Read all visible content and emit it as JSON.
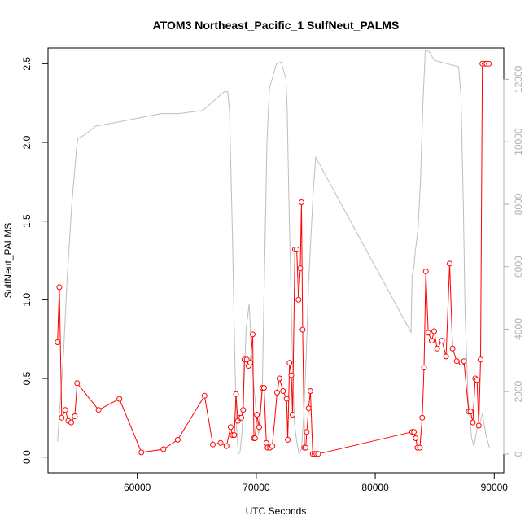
{
  "chart_data": {
    "type": "line",
    "title": "ATOM3 Northeast_Pacific_1 SulfNeut_PALMS",
    "xlabel": "UTC Seconds",
    "ylabel": "SulfNeut_PALMS",
    "xlim": [
      52500,
      90800
    ],
    "ylim": [
      -0.1,
      2.6
    ],
    "y2lim": [
      -600,
      13000
    ],
    "x_ticks": [
      60000,
      70000,
      80000,
      90000
    ],
    "y_ticks": [
      0.0,
      0.5,
      1.0,
      1.5,
      2.0,
      2.5
    ],
    "y2_ticks": [
      0,
      2000,
      4000,
      6000,
      8000,
      10000,
      12000
    ],
    "grid": false,
    "colors": {
      "primary": "#ff0000",
      "secondary": "#bebebe"
    },
    "series": [
      {
        "axis": "left",
        "style": "line+markers",
        "x": [
          53300,
          53450,
          53650,
          53950,
          54200,
          54450,
          54750,
          54950,
          56750,
          58500,
          60350,
          62200,
          63400,
          65650,
          66350,
          67000,
          67500,
          67850,
          68000,
          68150,
          68300,
          68450,
          68600,
          68750,
          68900,
          69000,
          69200,
          69350,
          69500,
          69700,
          69800,
          69900,
          70050,
          70250,
          70500,
          70650,
          70850,
          70950,
          71150,
          71350,
          71750,
          71950,
          72250,
          72550,
          72650,
          72800,
          72950,
          73050,
          73250,
          73400,
          73550,
          73700,
          73800,
          73900,
          74050,
          74150,
          74250,
          74400,
          74550,
          74750,
          74900,
          75050,
          75200,
          83100,
          83250,
          83400,
          83550,
          83750,
          83950,
          84100,
          84250,
          84450,
          84750,
          84950,
          85200,
          85600,
          85950,
          86250,
          86500,
          86850,
          87250,
          87450,
          87850,
          88000,
          88200,
          88400,
          88550,
          88700,
          88850,
          89000,
          89200,
          89350,
          89550
        ],
        "values": [
          0.73,
          1.08,
          0.25,
          0.3,
          0.23,
          0.22,
          0.26,
          0.47,
          0.3,
          0.37,
          0.03,
          0.05,
          0.11,
          0.39,
          0.08,
          0.09,
          0.07,
          0.19,
          0.14,
          0.14,
          0.4,
          0.23,
          0.25,
          0.25,
          0.3,
          0.62,
          0.62,
          0.58,
          0.6,
          0.78,
          0.12,
          0.12,
          0.27,
          0.19,
          0.44,
          0.44,
          0.09,
          0.06,
          0.06,
          0.07,
          0.41,
          0.5,
          0.42,
          0.37,
          0.11,
          0.6,
          0.52,
          0.27,
          1.32,
          1.32,
          1.0,
          1.2,
          1.62,
          0.81,
          0.06,
          0.06,
          0.16,
          0.31,
          0.42,
          0.02,
          0.02,
          0.02,
          0.02,
          0.16,
          0.16,
          0.12,
          0.06,
          0.06,
          0.25,
          0.57,
          1.18,
          0.79,
          0.74,
          0.8,
          0.69,
          0.74,
          0.64,
          1.23,
          0.69,
          0.61,
          0.6,
          0.61,
          0.29,
          0.29,
          0.22,
          0.5,
          0.49,
          0.2,
          0.62,
          2.5,
          2.5,
          2.5,
          2.5
        ]
      },
      {
        "axis": "right",
        "style": "line",
        "x": [
          53300,
          53500,
          53800,
          54100,
          54500,
          54900,
          55000,
          55500,
          56500,
          58000,
          60000,
          62000,
          63500,
          65500,
          67300,
          67600,
          67750,
          68000,
          68200,
          68350,
          68500,
          68650,
          68800,
          68950,
          69150,
          69400,
          69700,
          70000,
          70200,
          70500,
          70700,
          70800,
          70900,
          71100,
          71400,
          71700,
          72100,
          72500,
          72600,
          72750,
          73000,
          73200,
          73400,
          73600,
          73800,
          74000,
          74200,
          74400,
          74600,
          74800,
          75000,
          83000,
          83100,
          83250,
          83400,
          83600,
          83800,
          84000,
          84200,
          84500,
          84700,
          84800,
          85000,
          86000,
          86500,
          87000,
          87200,
          87400,
          87550,
          87800,
          88100,
          88300,
          88550,
          88800,
          89000,
          89300,
          89600
        ],
        "values": [
          400,
          1500,
          3200,
          5600,
          8000,
          9800,
          10100,
          10200,
          10500,
          10600,
          10750,
          10900,
          10900,
          11000,
          11600,
          11600,
          11000,
          7000,
          3000,
          800,
          0,
          100,
          700,
          2000,
          4000,
          4800,
          2600,
          1300,
          600,
          2000,
          6000,
          8000,
          10000,
          11700,
          12100,
          12500,
          12550,
          12000,
          11000,
          8000,
          3800,
          1000,
          400,
          0,
          150,
          1300,
          3200,
          5500,
          7000,
          8500,
          9500,
          3900,
          5700,
          6000,
          6600,
          7200,
          8800,
          11200,
          12900,
          12900,
          12800,
          12700,
          12600,
          12500,
          12450,
          12400,
          11500,
          8000,
          4500,
          1800,
          500,
          250,
          800,
          1000,
          1300,
          600,
          200
        ]
      }
    ]
  }
}
